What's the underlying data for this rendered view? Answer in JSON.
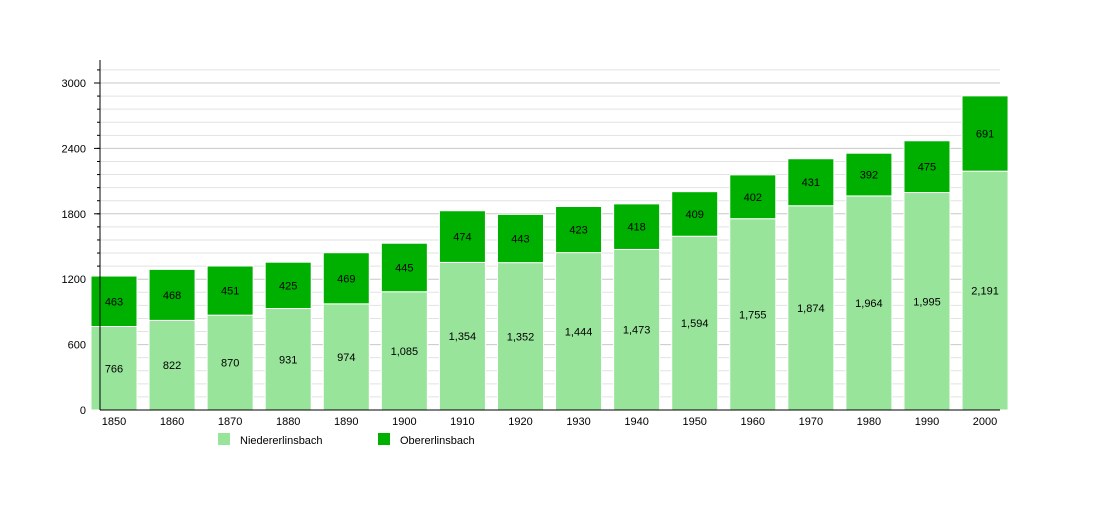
{
  "chart_data": {
    "type": "bar",
    "stacked": true,
    "title": "",
    "xlabel": "",
    "ylabel": "",
    "ylim": [
      0,
      3120
    ],
    "yticks": [
      0,
      600,
      1200,
      1800,
      2400,
      3000
    ],
    "grid": true,
    "legend_placement": "bottom",
    "categories": [
      "1850",
      "1860",
      "1870",
      "1880",
      "1890",
      "1900",
      "1910",
      "1920",
      "1930",
      "1940",
      "1950",
      "1960",
      "1970",
      "1980",
      "1990",
      "2000"
    ],
    "series": [
      {
        "name": "Niedererlinsbach",
        "color": "#98e49a",
        "values": [
          766,
          822,
          870,
          931,
          974,
          1085,
          1354,
          1352,
          1444,
          1473,
          1594,
          1755,
          1874,
          1964,
          1995,
          2191
        ],
        "labels": [
          "766",
          "822",
          "870",
          "931",
          "974",
          "1,085",
          "1,354",
          "1,352",
          "1,444",
          "1,473",
          "1,594",
          "1,755",
          "1,874",
          "1,964",
          "1,995",
          "2,191"
        ]
      },
      {
        "name": "Obererlinsbach",
        "color": "#00b000",
        "values": [
          463,
          468,
          451,
          425,
          469,
          445,
          474,
          443,
          423,
          418,
          409,
          402,
          431,
          392,
          475,
          691
        ],
        "labels": [
          "463",
          "468",
          "451",
          "425",
          "469",
          "445",
          "474",
          "443",
          "423",
          "418",
          "409",
          "402",
          "431",
          "392",
          "475",
          "691"
        ]
      }
    ]
  }
}
